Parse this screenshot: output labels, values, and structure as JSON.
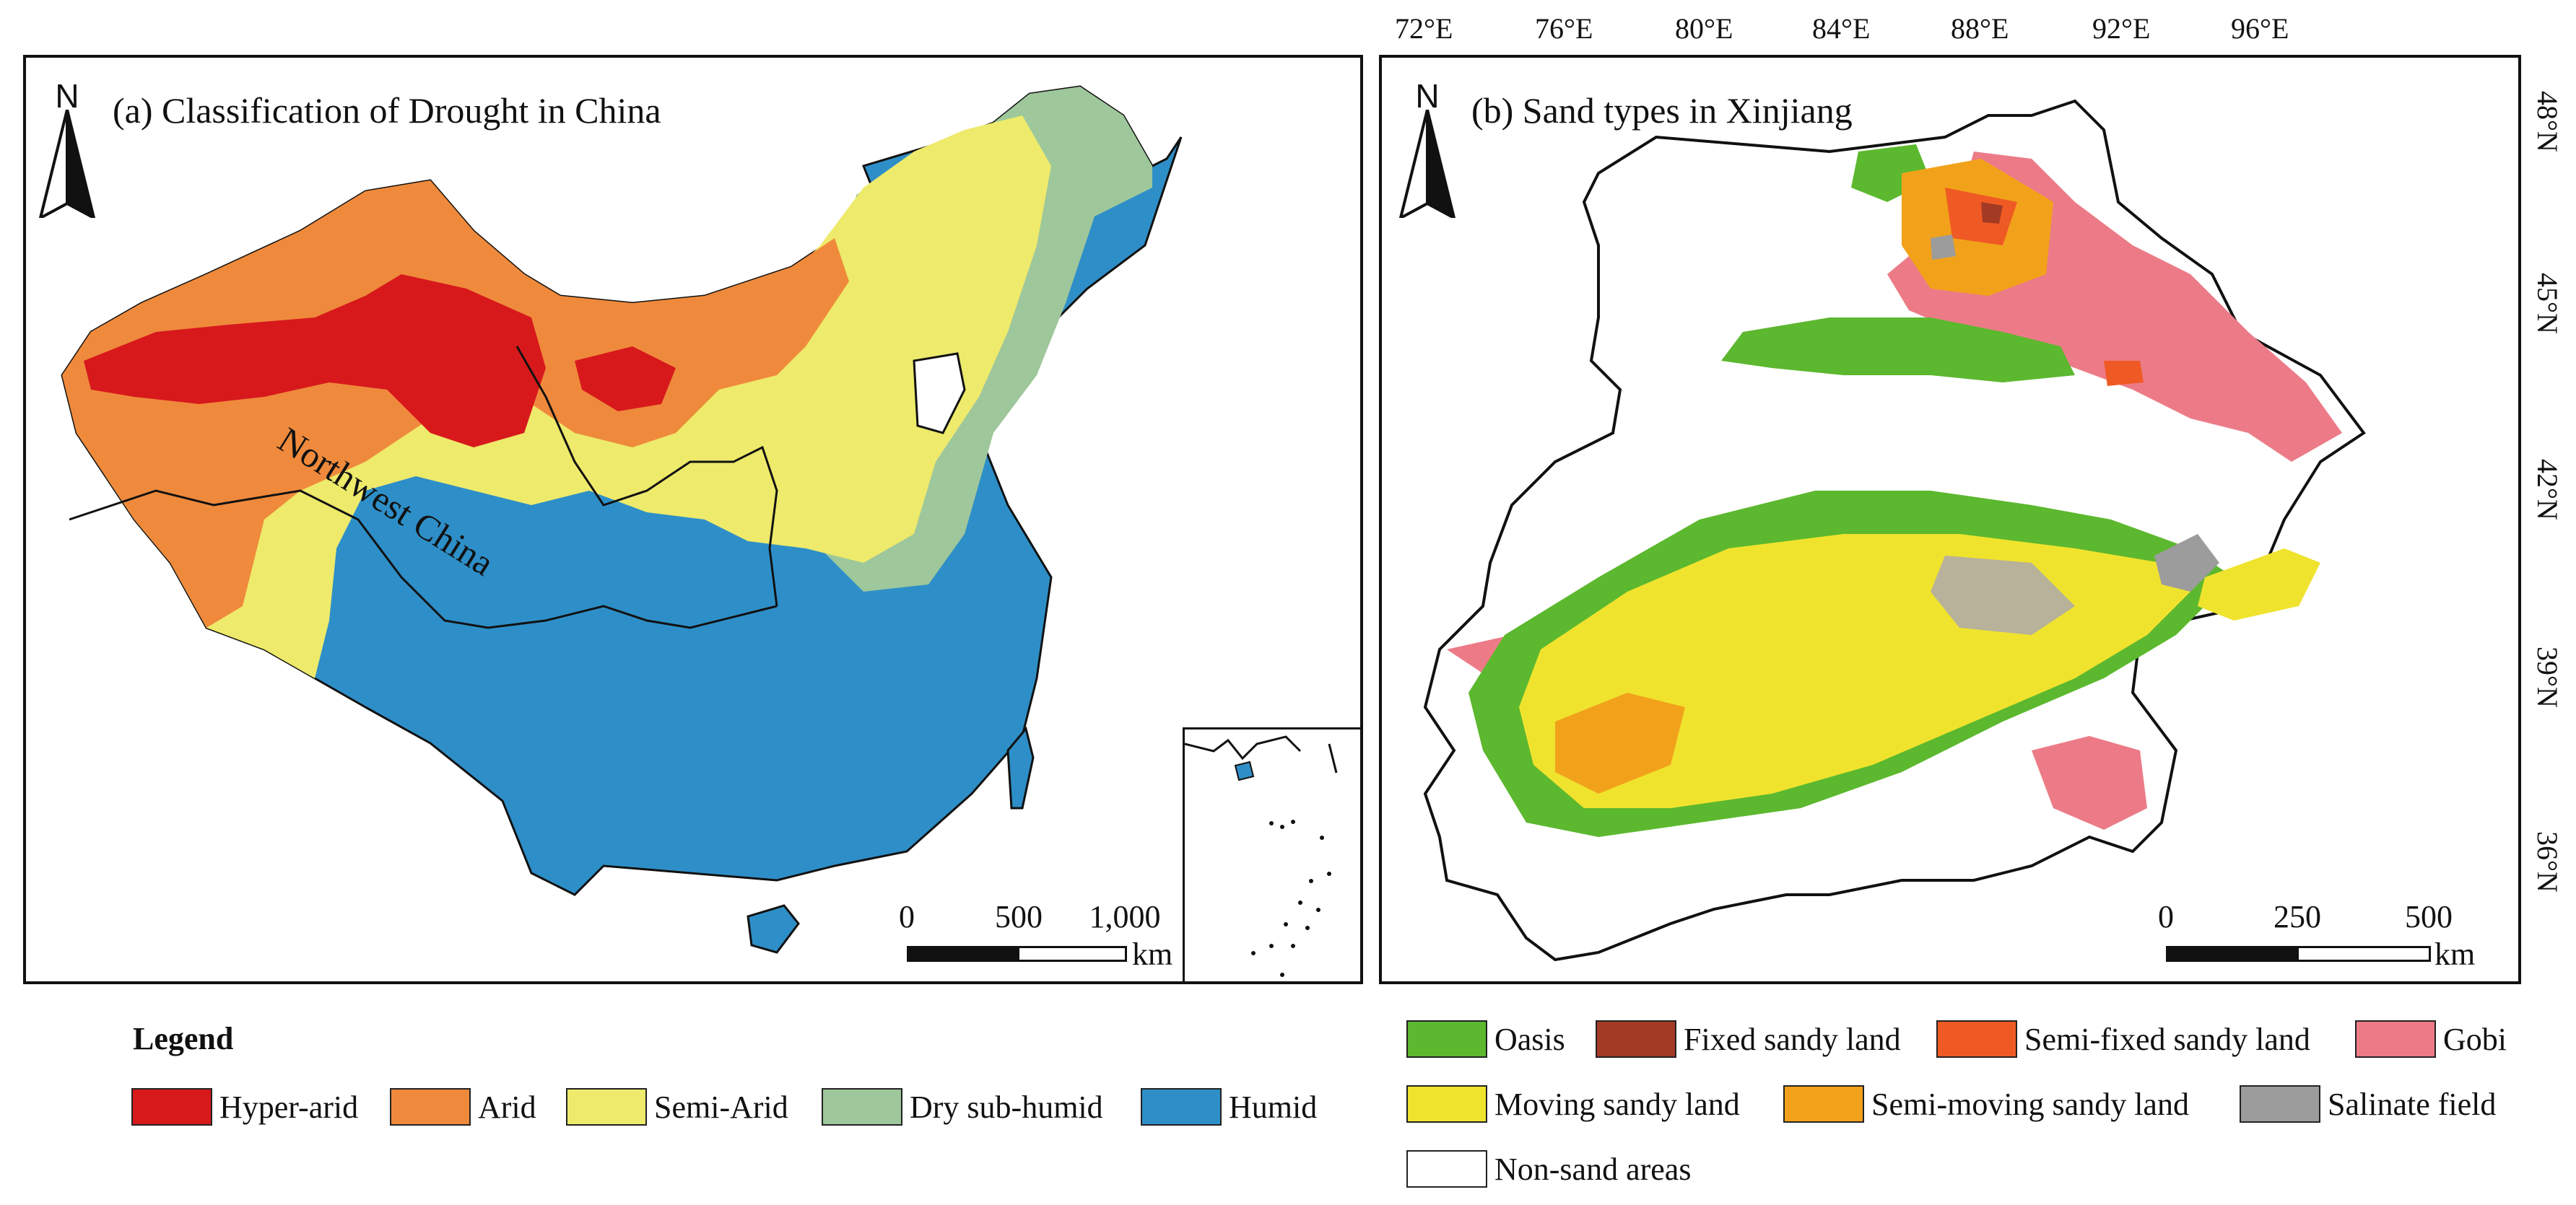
{
  "panel_a": {
    "title": "(a) Classification of Drought in China",
    "north_label": "N",
    "region_label": "Northwest China",
    "scale": {
      "ticks": [
        "0",
        "500",
        "1,000"
      ],
      "unit": "km"
    }
  },
  "panel_b": {
    "title": "(b) Sand types in Xinjiang",
    "north_label": "N",
    "scale": {
      "ticks": [
        "0",
        "250",
        "500"
      ],
      "unit": "km"
    },
    "longitudes": [
      "72°E",
      "76°E",
      "80°E",
      "84°E",
      "88°E",
      "92°E",
      "96°E"
    ],
    "latitudes": [
      "48°N",
      "45°N",
      "42°N",
      "39°N",
      "36°N"
    ]
  },
  "legend_a": {
    "title": "Legend",
    "items": [
      {
        "label": "Hyper-arid",
        "color": "#d7191c"
      },
      {
        "label": "Arid",
        "color": "#ef8a3c"
      },
      {
        "label": "Semi-Arid",
        "color": "#eeea6b"
      },
      {
        "label": "Dry sub-humid",
        "color": "#9ec79b"
      },
      {
        "label": "Humid",
        "color": "#2e8fc8"
      }
    ]
  },
  "legend_b": {
    "items": [
      {
        "label": "Oasis",
        "color": "#5cb82e"
      },
      {
        "label": "Fixed sandy land",
        "color": "#a23a24"
      },
      {
        "label": "Semi-fixed sandy land",
        "color": "#ef5a24"
      },
      {
        "label": "Gobi",
        "color": "#ec7b87"
      },
      {
        "label": "Moving sandy land",
        "color": "#f0e32e"
      },
      {
        "label": "Semi-moving sandy land",
        "color": "#f2a21a"
      },
      {
        "label": "Salinate field",
        "color": "#9c9c9c"
      },
      {
        "label": "Non-sand areas",
        "color": "#ffffff"
      }
    ]
  }
}
